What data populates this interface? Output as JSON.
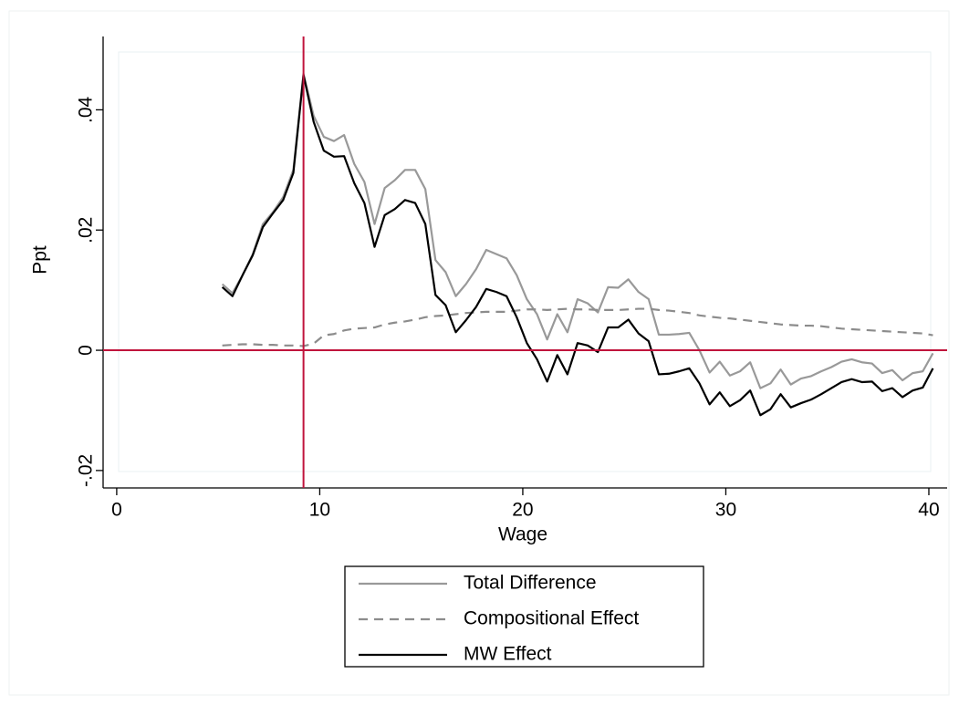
{
  "chart_data": {
    "type": "line",
    "x_label": "Wage",
    "y_label": "Ppt",
    "xlim": [
      -0.67,
      40.9
    ],
    "ylim": [
      -0.0229,
      0.0522
    ],
    "xticks": [
      0,
      10,
      20,
      30,
      40
    ],
    "yticks": [
      {
        "value": -0.02,
        "label": "-.02"
      },
      0,
      {
        "value": 0.02,
        "label": ".02"
      },
      {
        "value": 0.04,
        "label": ".04"
      }
    ],
    "xline": 9.2,
    "yline": 0,
    "ref_line_color": "#c0143c",
    "legend": "bottom",
    "x": [
      5.2,
      5.7,
      6.2,
      6.7,
      7.2,
      7.7,
      8.2,
      8.7,
      9.2,
      9.7,
      10.2,
      10.7,
      11.2,
      11.7,
      12.2,
      12.7,
      13.2,
      13.7,
      14.2,
      14.7,
      15.2,
      15.7,
      16.2,
      16.7,
      17.2,
      17.7,
      18.2,
      18.7,
      19.2,
      19.7,
      20.2,
      20.7,
      21.2,
      21.7,
      22.2,
      22.7,
      23.2,
      23.7,
      24.2,
      24.7,
      25.2,
      25.7,
      26.2,
      26.7,
      27.2,
      27.7,
      28.2,
      28.7,
      29.2,
      29.7,
      30.2,
      30.7,
      31.2,
      31.7,
      32.2,
      32.7,
      33.2,
      33.7,
      34.2,
      34.7,
      35.2,
      35.7,
      36.2,
      36.7,
      37.2,
      37.7,
      38.2,
      38.7,
      39.2,
      39.7,
      40.2
    ],
    "series": [
      {
        "name": "Total Difference",
        "color": "#999999",
        "dash": "none",
        "values": [
          0.011,
          0.0095,
          0.0125,
          0.016,
          0.021,
          0.023,
          0.0255,
          0.03,
          0.046,
          0.039,
          0.0355,
          0.0348,
          0.0358,
          0.031,
          0.028,
          0.021,
          0.027,
          0.0283,
          0.03,
          0.03,
          0.0268,
          0.015,
          0.013,
          0.009,
          0.011,
          0.0135,
          0.0167,
          0.016,
          0.0153,
          0.0125,
          0.0085,
          0.006,
          0.0018,
          0.006,
          0.003,
          0.0085,
          0.0078,
          0.0063,
          0.0105,
          0.0104,
          0.0118,
          0.0097,
          0.0085,
          0.0026,
          0.0026,
          0.0027,
          0.0029,
          0.0,
          -0.0037,
          -0.0019,
          -0.0042,
          -0.0035,
          -0.002,
          -0.0063,
          -0.0055,
          -0.0032,
          -0.0057,
          -0.0047,
          -0.0043,
          -0.0035,
          -0.0028,
          -0.0019,
          -0.0015,
          -0.002,
          -0.0022,
          -0.0038,
          -0.0033,
          -0.005,
          -0.0038,
          -0.0035,
          -0.0005
        ]
      },
      {
        "name": "Compositional Effect",
        "color": "#8c8c8c",
        "dash": "10 7",
        "values": [
          0.0008,
          0.0009,
          0.001,
          0.001,
          0.0009,
          0.0009,
          0.0008,
          0.0008,
          0.0007,
          0.0011,
          0.0025,
          0.0027,
          0.0033,
          0.0036,
          0.0037,
          0.0038,
          0.0043,
          0.0046,
          0.0048,
          0.0051,
          0.0055,
          0.0057,
          0.0058,
          0.006,
          0.0062,
          0.0063,
          0.0064,
          0.0064,
          0.0064,
          0.0066,
          0.0068,
          0.0068,
          0.0067,
          0.0068,
          0.0069,
          0.0068,
          0.0068,
          0.0067,
          0.0067,
          0.0067,
          0.0068,
          0.0069,
          0.0069,
          0.0067,
          0.0066,
          0.0064,
          0.0062,
          0.0058,
          0.0056,
          0.0054,
          0.0053,
          0.0051,
          0.0049,
          0.0047,
          0.0045,
          0.0043,
          0.0042,
          0.0041,
          0.0041,
          0.004,
          0.0038,
          0.0036,
          0.0035,
          0.0034,
          0.0033,
          0.0032,
          0.0031,
          0.003,
          0.0029,
          0.0028,
          0.0025
        ]
      },
      {
        "name": "MW Effect",
        "color": "#000000",
        "dash": "none",
        "values": [
          0.0105,
          0.009,
          0.0125,
          0.0158,
          0.0205,
          0.0228,
          0.025,
          0.0295,
          0.0458,
          0.038,
          0.0332,
          0.0322,
          0.0323,
          0.0278,
          0.0245,
          0.0172,
          0.0225,
          0.0235,
          0.025,
          0.0245,
          0.021,
          0.0092,
          0.0075,
          0.003,
          0.005,
          0.0072,
          0.0102,
          0.0097,
          0.009,
          0.0055,
          0.0012,
          -0.0015,
          -0.0052,
          -0.0008,
          -0.004,
          0.0012,
          0.0008,
          -0.0003,
          0.0038,
          0.0038,
          0.0051,
          0.0028,
          0.0015,
          -0.004,
          -0.0039,
          -0.0035,
          -0.003,
          -0.0055,
          -0.009,
          -0.007,
          -0.0093,
          -0.0083,
          -0.0067,
          -0.0108,
          -0.0098,
          -0.0073,
          -0.0095,
          -0.0088,
          -0.0082,
          -0.0073,
          -0.0063,
          -0.0053,
          -0.0048,
          -0.0053,
          -0.0052,
          -0.0068,
          -0.0063,
          -0.0078,
          -0.0067,
          -0.0062,
          -0.003
        ]
      }
    ]
  }
}
